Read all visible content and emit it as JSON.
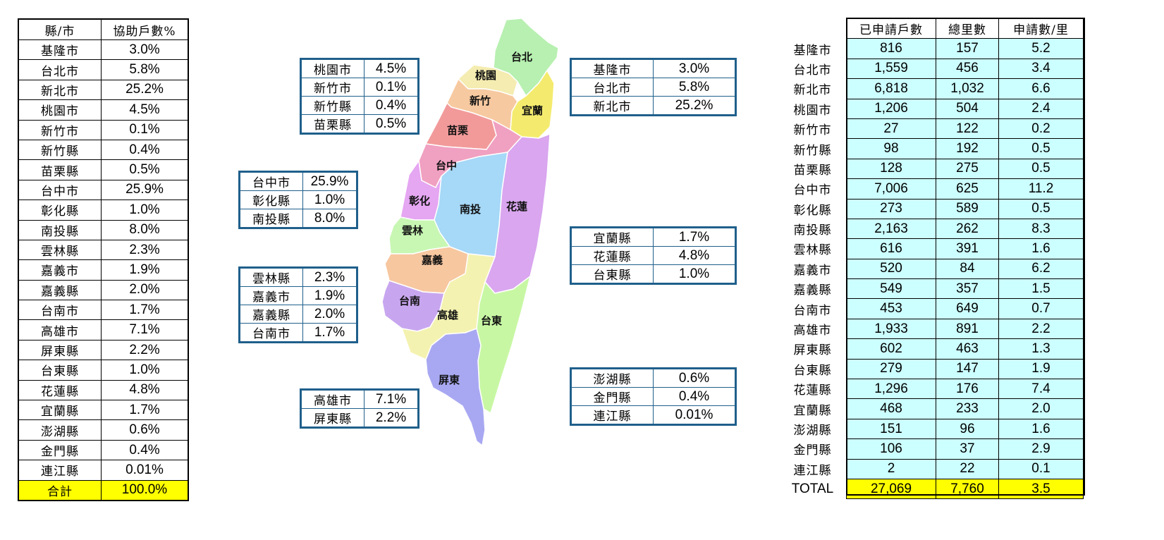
{
  "left_table": {
    "header": [
      "縣/市",
      "協助戶數%"
    ],
    "rows": [
      [
        "基隆市",
        "3.0%"
      ],
      [
        "台北市",
        "5.8%"
      ],
      [
        "新北市",
        "25.2%"
      ],
      [
        "桃園市",
        "4.5%"
      ],
      [
        "新竹市",
        "0.1%"
      ],
      [
        "新竹縣",
        "0.4%"
      ],
      [
        "苗栗縣",
        "0.5%"
      ],
      [
        "台中市",
        "25.9%"
      ],
      [
        "彰化縣",
        "1.0%"
      ],
      [
        "南投縣",
        "8.0%"
      ],
      [
        "雲林縣",
        "2.3%"
      ],
      [
        "嘉義市",
        "1.9%"
      ],
      [
        "嘉義縣",
        "2.0%"
      ],
      [
        "台南市",
        "1.7%"
      ],
      [
        "高雄市",
        "7.1%"
      ],
      [
        "屏東縣",
        "2.2%"
      ],
      [
        "台東縣",
        "1.0%"
      ],
      [
        "花蓮縣",
        "4.8%"
      ],
      [
        "宜蘭縣",
        "1.7%"
      ],
      [
        "澎湖縣",
        "0.6%"
      ],
      [
        "金門縣",
        "0.4%"
      ],
      [
        "連江縣",
        "0.01%"
      ]
    ],
    "total": [
      "合計",
      "100.0%"
    ]
  },
  "region_boxes": {
    "north_west": [
      [
        "桃園市",
        "4.5%"
      ],
      [
        "新竹市",
        "0.1%"
      ],
      [
        "新竹縣",
        "0.4%"
      ],
      [
        "苗栗縣",
        "0.5%"
      ]
    ],
    "central": [
      [
        "台中市",
        "25.9%"
      ],
      [
        "彰化縣",
        "1.0%"
      ],
      [
        "南投縣",
        "8.0%"
      ]
    ],
    "south_west": [
      [
        "雲林縣",
        "2.3%"
      ],
      [
        "嘉義市",
        "1.9%"
      ],
      [
        "嘉義縣",
        "2.0%"
      ],
      [
        "台南市",
        "1.7%"
      ]
    ],
    "south": [
      [
        "高雄市",
        "7.1%"
      ],
      [
        "屏東縣",
        "2.2%"
      ]
    ],
    "north": [
      [
        "基隆市",
        "3.0%"
      ],
      [
        "台北市",
        "5.8%"
      ],
      [
        "新北市",
        "25.2%"
      ]
    ],
    "east": [
      [
        "宜蘭縣",
        "1.7%"
      ],
      [
        "花蓮縣",
        "4.8%"
      ],
      [
        "台東縣",
        "1.0%"
      ]
    ],
    "islands": [
      [
        "澎湖縣",
        "0.6%"
      ],
      [
        "金門縣",
        "0.4%"
      ],
      [
        "連江縣",
        "0.01%"
      ]
    ]
  },
  "map": {
    "labels": {
      "taipei": "台北",
      "taoyuan": "桃園",
      "hsinchu": "新竹",
      "yilan": "宜蘭",
      "miaoli": "苗栗",
      "taichung": "台中",
      "changhua": "彰化",
      "nantou": "南投",
      "hualien": "花蓮",
      "yunlin": "雲林",
      "chiayi": "嘉義",
      "tainan": "台南",
      "kaohsiung": "高雄",
      "taitung": "台東",
      "pingtung": "屏東"
    },
    "colors": {
      "taipei": "#b7f0b0",
      "taoyuan": "#f4ecb0",
      "hsinchu": "#f7c9a0",
      "yilan": "#f4eb6e",
      "miaoli": "#f29a9a",
      "taichung": "#f0a0c0",
      "changhua": "#e5a6f2",
      "nantou": "#a6d8f7",
      "hualien": "#d9a6ef",
      "yunlin": "#c8f7b4",
      "chiayi": "#f7c7a0",
      "tainan": "#c8a6ef",
      "kaohsiung": "#f4f2b0",
      "taitung": "#c8f7a4",
      "pingtung": "#a8a8f2"
    }
  },
  "right_table": {
    "header": [
      "已申請戶數",
      "總里數",
      "申請數/里"
    ],
    "rows": [
      [
        "基隆市",
        "816",
        "157",
        "5.2"
      ],
      [
        "台北市",
        "1,559",
        "456",
        "3.4"
      ],
      [
        "新北市",
        "6,818",
        "1,032",
        "6.6"
      ],
      [
        "桃園市",
        "1,206",
        "504",
        "2.4"
      ],
      [
        "新竹市",
        "27",
        "122",
        "0.2"
      ],
      [
        "新竹縣",
        "98",
        "192",
        "0.5"
      ],
      [
        "苗栗縣",
        "128",
        "275",
        "0.5"
      ],
      [
        "台中市",
        "7,006",
        "625",
        "11.2"
      ],
      [
        "彰化縣",
        "273",
        "589",
        "0.5"
      ],
      [
        "南投縣",
        "2,163",
        "262",
        "8.3"
      ],
      [
        "雲林縣",
        "616",
        "391",
        "1.6"
      ],
      [
        "嘉義市",
        "520",
        "84",
        "6.2"
      ],
      [
        "嘉義縣",
        "549",
        "357",
        "1.5"
      ],
      [
        "台南市",
        "453",
        "649",
        "0.7"
      ],
      [
        "高雄市",
        "1,933",
        "891",
        "2.2"
      ],
      [
        "屏東縣",
        "602",
        "463",
        "1.3"
      ],
      [
        "台東縣",
        "279",
        "147",
        "1.9"
      ],
      [
        "花蓮縣",
        "1,296",
        "176",
        "7.4"
      ],
      [
        "宜蘭縣",
        "468",
        "233",
        "2.0"
      ],
      [
        "澎湖縣",
        "151",
        "96",
        "1.6"
      ],
      [
        "金門縣",
        "106",
        "37",
        "2.9"
      ],
      [
        "連江縣",
        "2",
        "22",
        "0.1"
      ]
    ],
    "total": [
      "TOTAL",
      "27,069",
      "7,760",
      "3.5"
    ]
  },
  "chart_data": {
    "type": "table",
    "title": "",
    "columns": [
      "縣/市",
      "協助戶數%",
      "已申請戶數",
      "總里數",
      "申請數/里"
    ],
    "rows": [
      [
        "基隆市",
        "3.0%",
        816,
        157,
        5.2
      ],
      [
        "台北市",
        "5.8%",
        1559,
        456,
        3.4
      ],
      [
        "新北市",
        "25.2%",
        6818,
        1032,
        6.6
      ],
      [
        "桃園市",
        "4.5%",
        1206,
        504,
        2.4
      ],
      [
        "新竹市",
        "0.1%",
        27,
        122,
        0.2
      ],
      [
        "新竹縣",
        "0.4%",
        98,
        192,
        0.5
      ],
      [
        "苗栗縣",
        "0.5%",
        128,
        275,
        0.5
      ],
      [
        "台中市",
        "25.9%",
        7006,
        625,
        11.2
      ],
      [
        "彰化縣",
        "1.0%",
        273,
        589,
        0.5
      ],
      [
        "南投縣",
        "8.0%",
        2163,
        262,
        8.3
      ],
      [
        "雲林縣",
        "2.3%",
        616,
        391,
        1.6
      ],
      [
        "嘉義市",
        "1.9%",
        520,
        84,
        6.2
      ],
      [
        "嘉義縣",
        "2.0%",
        549,
        357,
        1.5
      ],
      [
        "台南市",
        "1.7%",
        453,
        649,
        0.7
      ],
      [
        "高雄市",
        "7.1%",
        1933,
        891,
        2.2
      ],
      [
        "屏東縣",
        "2.2%",
        602,
        463,
        1.3
      ],
      [
        "台東縣",
        "1.0%",
        279,
        147,
        1.9
      ],
      [
        "花蓮縣",
        "4.8%",
        1296,
        176,
        7.4
      ],
      [
        "宜蘭縣",
        "1.7%",
        468,
        233,
        2.0
      ],
      [
        "澎湖縣",
        "0.6%",
        151,
        96,
        1.6
      ],
      [
        "金門縣",
        "0.4%",
        106,
        37,
        2.9
      ],
      [
        "連江縣",
        "0.01%",
        2,
        22,
        0.1
      ]
    ],
    "total": [
      "TOTAL",
      "100.0%",
      27069,
      7760,
      3.5
    ]
  }
}
